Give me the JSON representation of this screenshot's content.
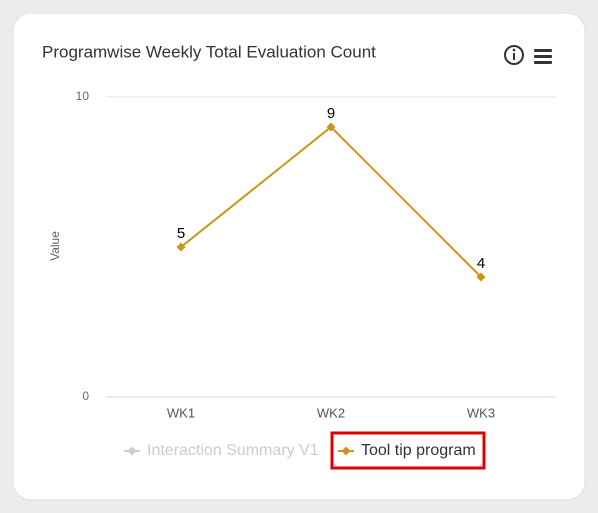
{
  "chart_data": {
    "type": "line",
    "title": "Programwise Weekly Total Evaluation Count",
    "y_label": "Value",
    "categories": [
      "WK1",
      "WK2",
      "WK3"
    ],
    "series": [
      {
        "name": "Interaction Summary V1",
        "color": "#cccccc",
        "visible": false,
        "values": [
          null,
          null,
          null
        ]
      },
      {
        "name": "Tool tip program",
        "color": "#c9961a",
        "visible": true,
        "values": [
          5,
          9,
          4
        ]
      }
    ],
    "ylim": [
      0,
      10
    ],
    "yticks": [
      0,
      10
    ],
    "grid": true,
    "legend": "bottom"
  }
}
